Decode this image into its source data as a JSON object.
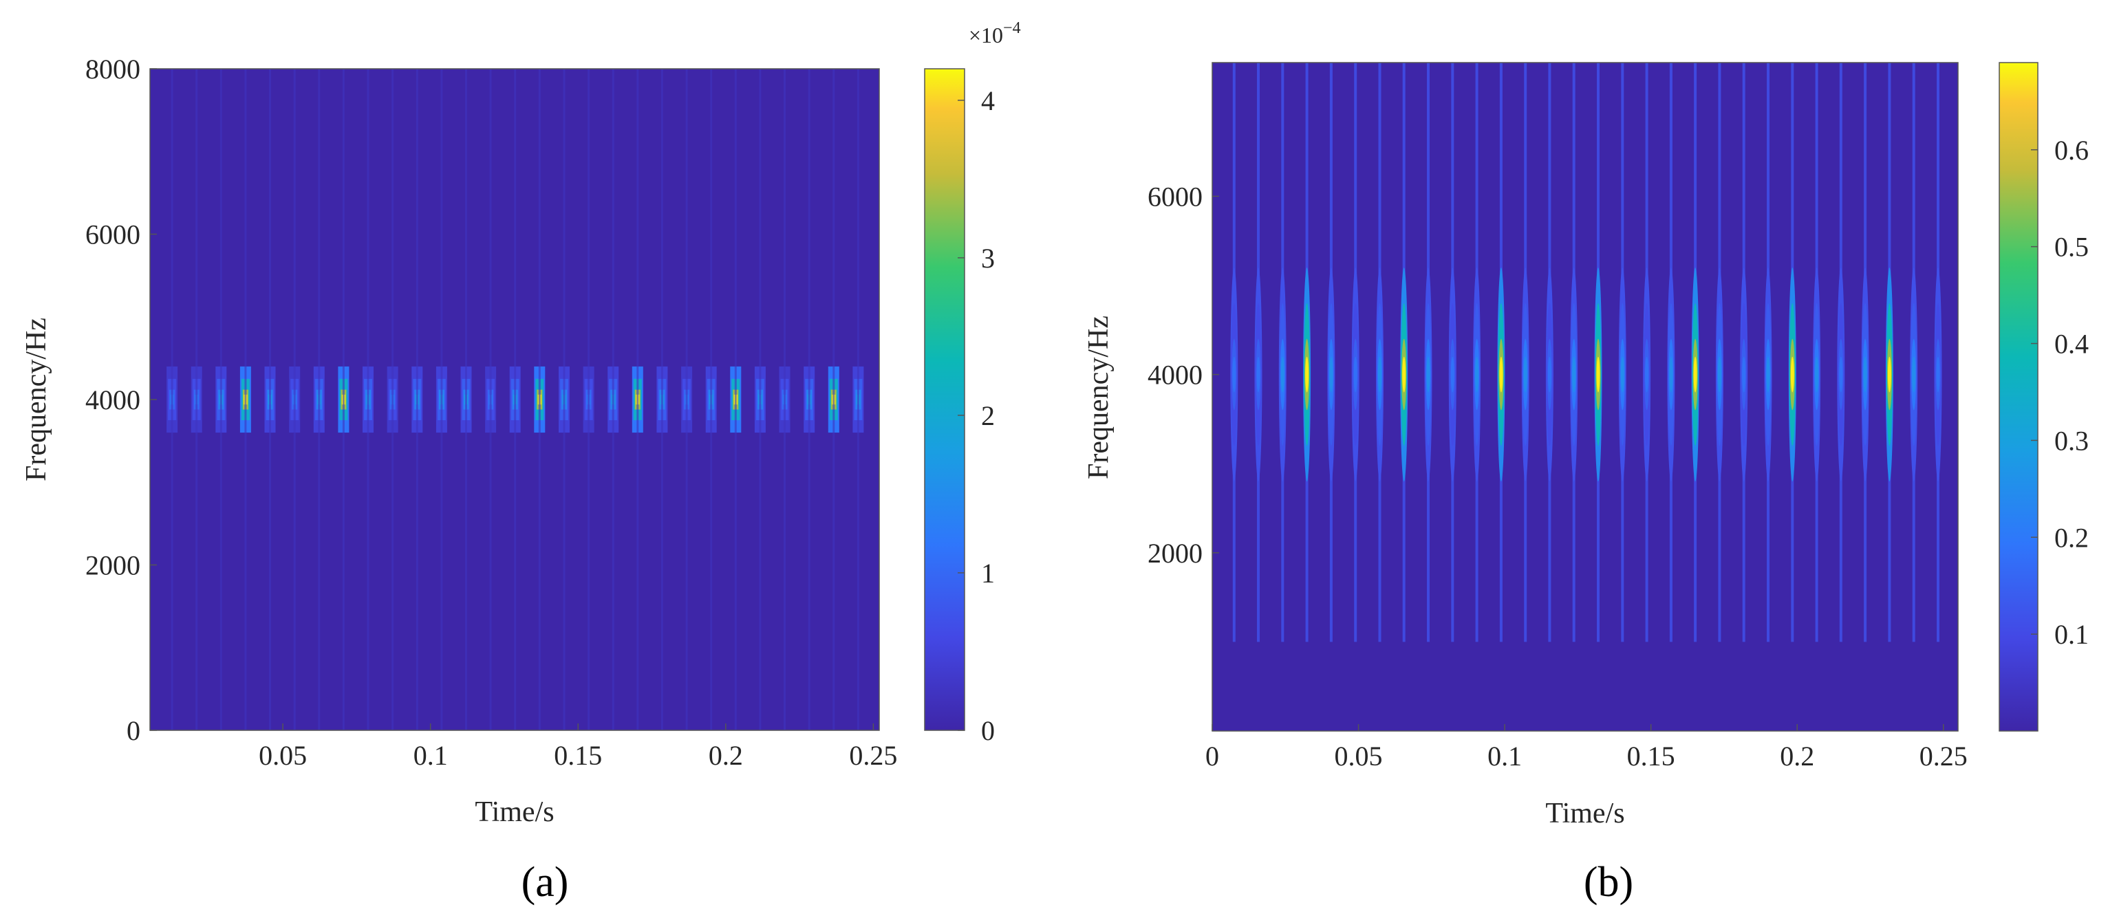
{
  "chart_data": [
    {
      "type": "heatmap",
      "panel_label": "(a)",
      "title": "",
      "xlabel": "Time/s",
      "ylabel": "Frequency/Hz",
      "xlim": [
        0.005,
        0.252
      ],
      "ylim": [
        0,
        8000
      ],
      "xticks": [
        0.05,
        0.1,
        0.15,
        0.2,
        0.25
      ],
      "xtick_labels": [
        "0.05",
        "0.1",
        "0.15",
        "0.2",
        "0.25"
      ],
      "yticks": [
        0,
        2000,
        4000,
        6000,
        8000
      ],
      "ytick_labels": [
        "0",
        "2000",
        "4000",
        "6000",
        "8000"
      ],
      "colorbar": {
        "min": 0,
        "max": 4.2,
        "ticks": [
          0,
          1,
          2,
          3,
          4
        ],
        "tick_labels": [
          "0",
          "1",
          "2",
          "3",
          "4"
        ],
        "exponent_base": "×10",
        "exponent_power": "−4"
      },
      "center_frequency_hz": 4000,
      "pulse_period_s": 0.0083,
      "impulse_times_s": [
        0.034,
        0.067,
        0.1,
        0.134,
        0.167,
        0.2,
        0.234
      ],
      "impulse_peak_value": 4.2,
      "background_value": 0.05
    },
    {
      "type": "heatmap",
      "panel_label": "(b)",
      "title": "",
      "xlabel": "Time/s",
      "ylabel": "Frequency/Hz",
      "xlim": [
        0,
        0.255
      ],
      "ylim": [
        0,
        7500
      ],
      "xticks": [
        0,
        0.05,
        0.1,
        0.15,
        0.2,
        0.25
      ],
      "xtick_labels": [
        "0",
        "0.05",
        "0.1",
        "0.15",
        "0.2",
        "0.25"
      ],
      "yticks": [
        2000,
        4000,
        6000
      ],
      "ytick_labels": [
        "2000",
        "4000",
        "6000"
      ],
      "colorbar": {
        "min": 0,
        "max": 0.69,
        "ticks": [
          0.1,
          0.2,
          0.3,
          0.4,
          0.5,
          0.6
        ],
        "tick_labels": [
          "0.1",
          "0.2",
          "0.3",
          "0.4",
          "0.5",
          "0.6"
        ]
      },
      "center_frequency_hz": 4000,
      "pulse_period_s": 0.0083,
      "impulse_times_s": [
        0.034,
        0.067,
        0.1,
        0.134,
        0.167,
        0.2,
        0.234
      ],
      "impulse_peak_value": 0.68,
      "background_value": 0.03
    }
  ]
}
